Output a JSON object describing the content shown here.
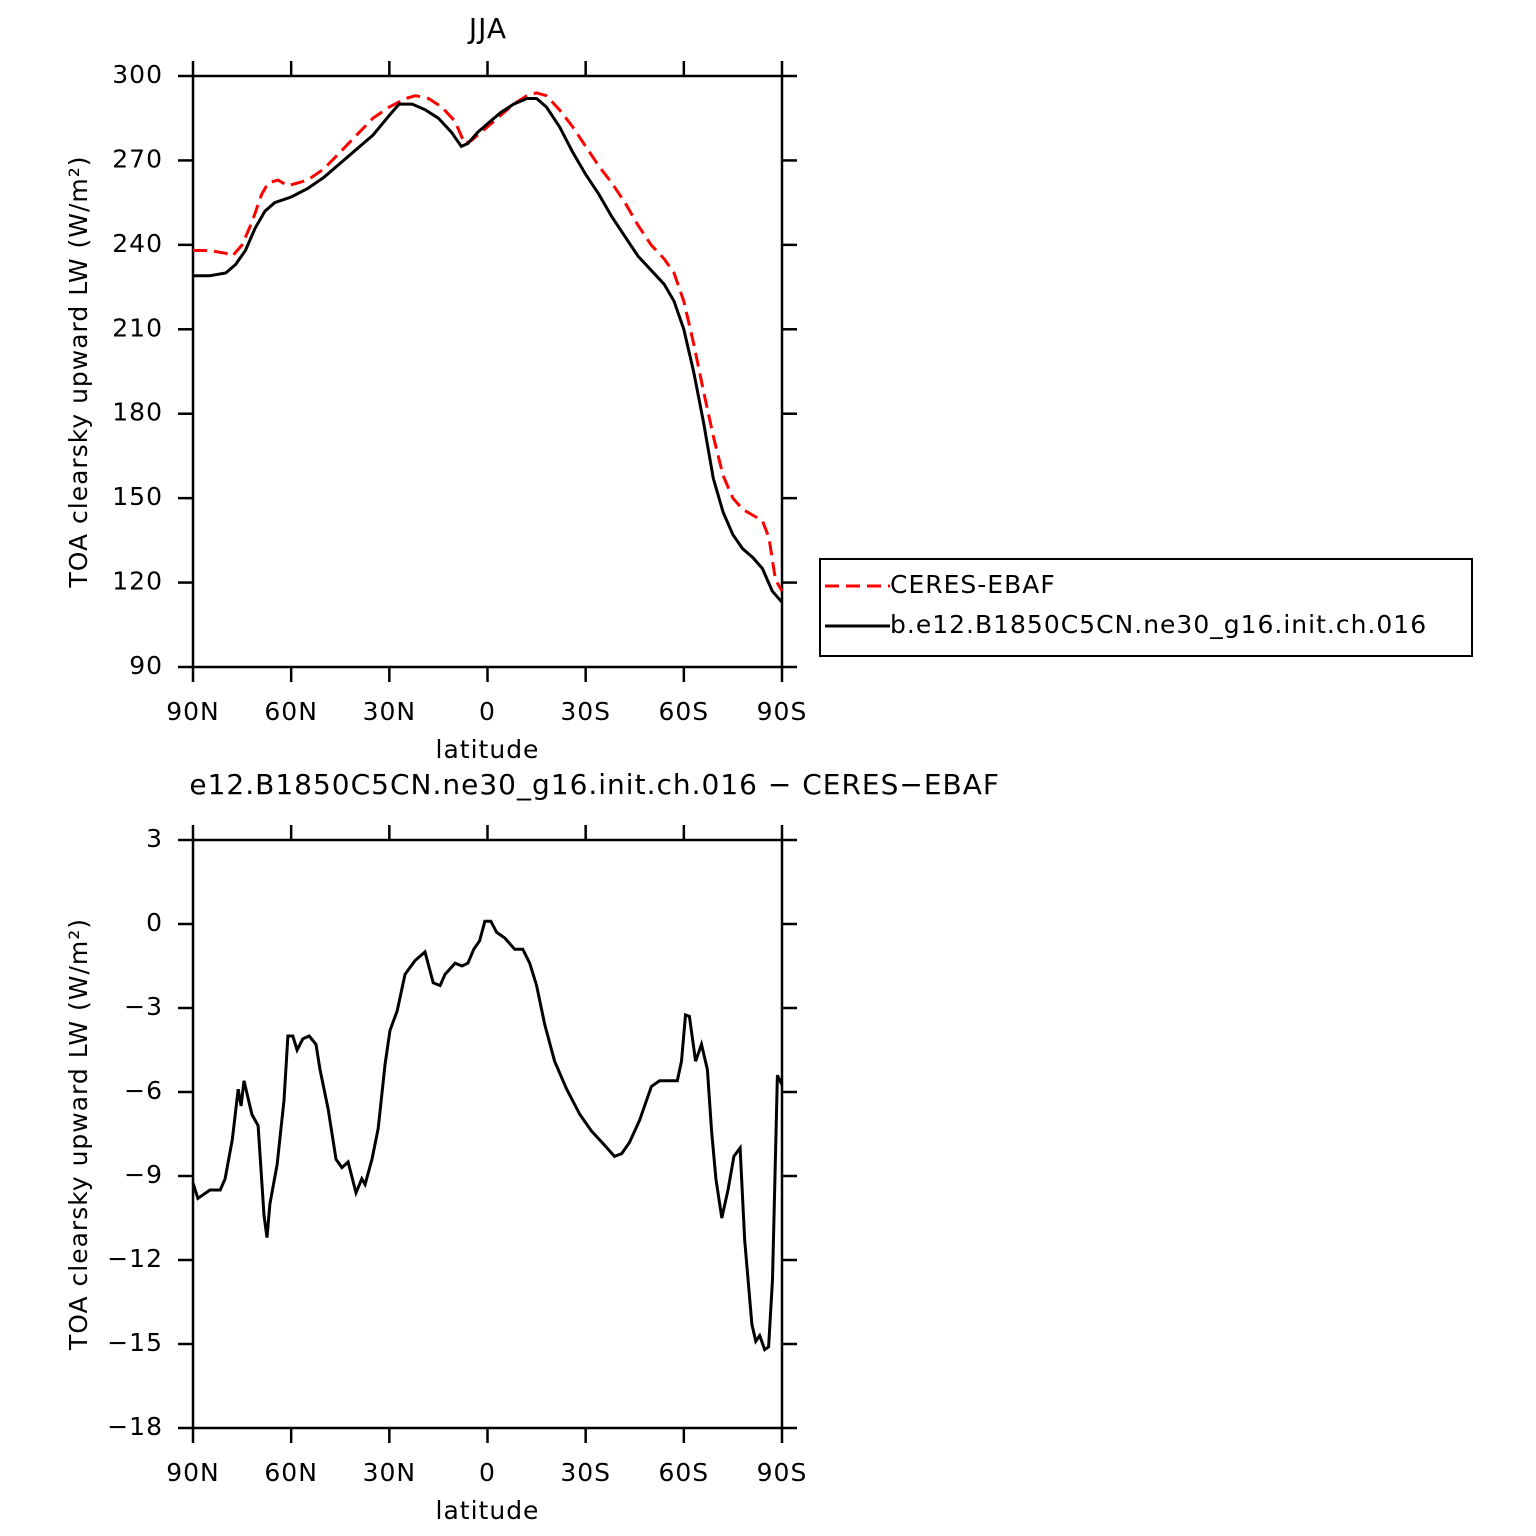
{
  "chart_data": [
    {
      "type": "line",
      "title": "JJA",
      "x_label": "latitude",
      "y_label": "TOA clearsky upward LW (W/m²)",
      "xlim": [
        90,
        -90
      ],
      "xticks": [
        {
          "value": 90,
          "label": "90N"
        },
        {
          "value": 60,
          "label": "60N"
        },
        {
          "value": 30,
          "label": "30N"
        },
        0,
        {
          "value": -30,
          "label": "30S"
        },
        {
          "value": -60,
          "label": "60S"
        },
        {
          "value": -90,
          "label": "90S"
        }
      ],
      "ylim": [
        90,
        300
      ],
      "yticks": [
        90,
        120,
        150,
        180,
        210,
        240,
        270,
        300
      ],
      "legend": "right",
      "series": [
        {
          "name": "CERES-EBAF",
          "color": "#ff0000",
          "line_style": "dashed",
          "x": [
            90,
            85,
            80,
            78,
            75,
            72,
            69,
            67,
            64,
            61,
            58,
            55,
            50,
            45,
            40,
            35,
            30,
            25,
            22,
            18,
            14,
            10,
            7,
            5,
            2,
            0,
            -4,
            -8,
            -12,
            -15,
            -18,
            -22,
            -26,
            -30,
            -34,
            -38,
            -42,
            -46,
            -50,
            -54,
            -57,
            -60,
            -63,
            -66,
            -69,
            -72,
            -75,
            -78,
            -81,
            -84,
            -86,
            -88,
            -90
          ],
          "values": [
            238,
            238,
            237,
            236,
            240,
            248,
            258,
            262,
            263,
            261,
            262,
            263,
            267,
            273,
            279,
            285,
            289,
            292,
            293,
            292,
            289,
            284,
            276,
            277,
            280,
            282,
            286,
            290,
            293,
            294,
            293,
            288,
            282,
            275,
            268,
            262,
            255,
            247,
            240,
            235,
            230,
            220,
            205,
            188,
            172,
            158,
            150,
            146,
            144,
            142,
            136,
            121,
            117
          ]
        },
        {
          "name": "b.e12.B1850C5CN.ne30_g16.init.ch.016",
          "color": "#000000",
          "line_style": "solid",
          "x": [
            90,
            85,
            80,
            77,
            74,
            71,
            68,
            65,
            60,
            55,
            50,
            45,
            40,
            35,
            30,
            27,
            23,
            19,
            15,
            11,
            8,
            6,
            3,
            0,
            -4,
            -8,
            -12,
            -15,
            -18,
            -22,
            -26,
            -30,
            -34,
            -38,
            -42,
            -46,
            -50,
            -54,
            -57,
            -60,
            -63,
            -66,
            -69,
            -72,
            -75,
            -78,
            -81,
            -84,
            -87,
            -90
          ],
          "values": [
            229,
            229,
            230,
            233,
            238,
            246,
            252,
            255,
            257,
            260,
            264,
            269,
            274,
            279,
            286,
            290,
            290,
            288,
            285,
            280,
            275,
            276,
            280,
            283,
            287,
            290,
            292,
            292,
            289,
            282,
            273,
            265,
            258,
            250,
            243,
            236,
            231,
            226,
            220,
            210,
            195,
            177,
            157,
            145,
            137,
            132,
            129,
            125,
            117,
            113
          ]
        }
      ]
    },
    {
      "type": "line",
      "title": "e12.B1850C5CN.ne30_g16.init.ch.016 − CERES−EBAF",
      "x_label": "latitude",
      "y_label": "TOA clearsky upward LW (W/m²)",
      "xlim": [
        90,
        -90
      ],
      "xticks": [
        {
          "value": 90,
          "label": "90N"
        },
        {
          "value": 60,
          "label": "60N"
        },
        {
          "value": 30,
          "label": "30N"
        },
        0,
        {
          "value": -30,
          "label": "30S"
        },
        {
          "value": -60,
          "label": "60S"
        },
        {
          "value": -90,
          "label": "90S"
        }
      ],
      "ylim": [
        -18,
        3
      ],
      "yticks": [
        {
          "value": -18,
          "label": "−18"
        },
        {
          "value": -15,
          "label": "−15"
        },
        {
          "value": -12,
          "label": "−12"
        },
        {
          "value": -9,
          "label": "−9"
        },
        {
          "value": -6,
          "label": "−6"
        },
        {
          "value": -3,
          "label": "−3"
        },
        0,
        3
      ],
      "series": [
        {
          "color": "#000000",
          "line_style": "solid",
          "x": [
            90,
            88.5,
            84.8,
            81.7,
            80.2,
            78,
            76.2,
            75.3,
            74.4,
            72,
            70.1,
            68.3,
            67.4,
            66.5,
            64.3,
            62.2,
            61,
            59.5,
            58.2,
            56.4,
            54.5,
            52.4,
            51.2,
            48.7,
            46.3,
            44.5,
            42.6,
            40.2,
            38.4,
            37.4,
            35.3,
            33.4,
            31.3,
            29.8,
            27.6,
            25.2,
            22.1,
            19.1,
            16.6,
            14.5,
            13,
            9.9,
            7.8,
            6,
            4.2,
            2.4,
            0.8,
            -1,
            -2.8,
            -5.3,
            -8.3,
            -10.8,
            -12.9,
            -15,
            -17.5,
            -20.5,
            -24.2,
            -28.2,
            -31.8,
            -35.8,
            -38.8,
            -41,
            -43.4,
            -46.5,
            -50.1,
            -52.6,
            -55.6,
            -58,
            -59.3,
            -60.5,
            -61.7,
            -63.6,
            -65.4,
            -67.2,
            -68.5,
            -69.8,
            -71.6,
            -73.5,
            -75.3,
            -77.2,
            -78.6,
            -80.8,
            -82,
            -83.2,
            -84.7,
            -85.9,
            -87.1,
            -88.6,
            -90
          ],
          "values": [
            -9.25,
            -9.8,
            -9.5,
            -9.5,
            -9.1,
            -7.7,
            -5.9,
            -6.5,
            -5.6,
            -6.8,
            -7.2,
            -10.4,
            -11.2,
            -10,
            -8.6,
            -6.3,
            -4,
            -4,
            -4.5,
            -4.1,
            -4,
            -4.3,
            -5.2,
            -6.6,
            -8.4,
            -8.7,
            -8.5,
            -9.6,
            -9.1,
            -9.3,
            -8.4,
            -7.3,
            -5,
            -3.8,
            -3.1,
            -1.8,
            -1.3,
            -1,
            -2.1,
            -2.2,
            -1.8,
            -1.4,
            -1.5,
            -1.4,
            -0.9,
            -0.6,
            0.1,
            0.1,
            -0.3,
            -0.5,
            -0.9,
            -0.9,
            -1.4,
            -2.2,
            -3.6,
            -4.9,
            -5.9,
            -6.8,
            -7.4,
            -7.9,
            -8.3,
            -8.2,
            -7.8,
            -7,
            -5.8,
            -5.6,
            -5.6,
            -5.6,
            -4.9,
            -3.25,
            -3.3,
            -4.9,
            -4.3,
            -5.2,
            -7.4,
            -9.1,
            -10.5,
            -9.5,
            -8.3,
            -8,
            -11.3,
            -14.3,
            -14.9,
            -14.7,
            -15.2,
            -15.1,
            -12.7,
            -5.4,
            -5.75
          ]
        }
      ]
    }
  ]
}
